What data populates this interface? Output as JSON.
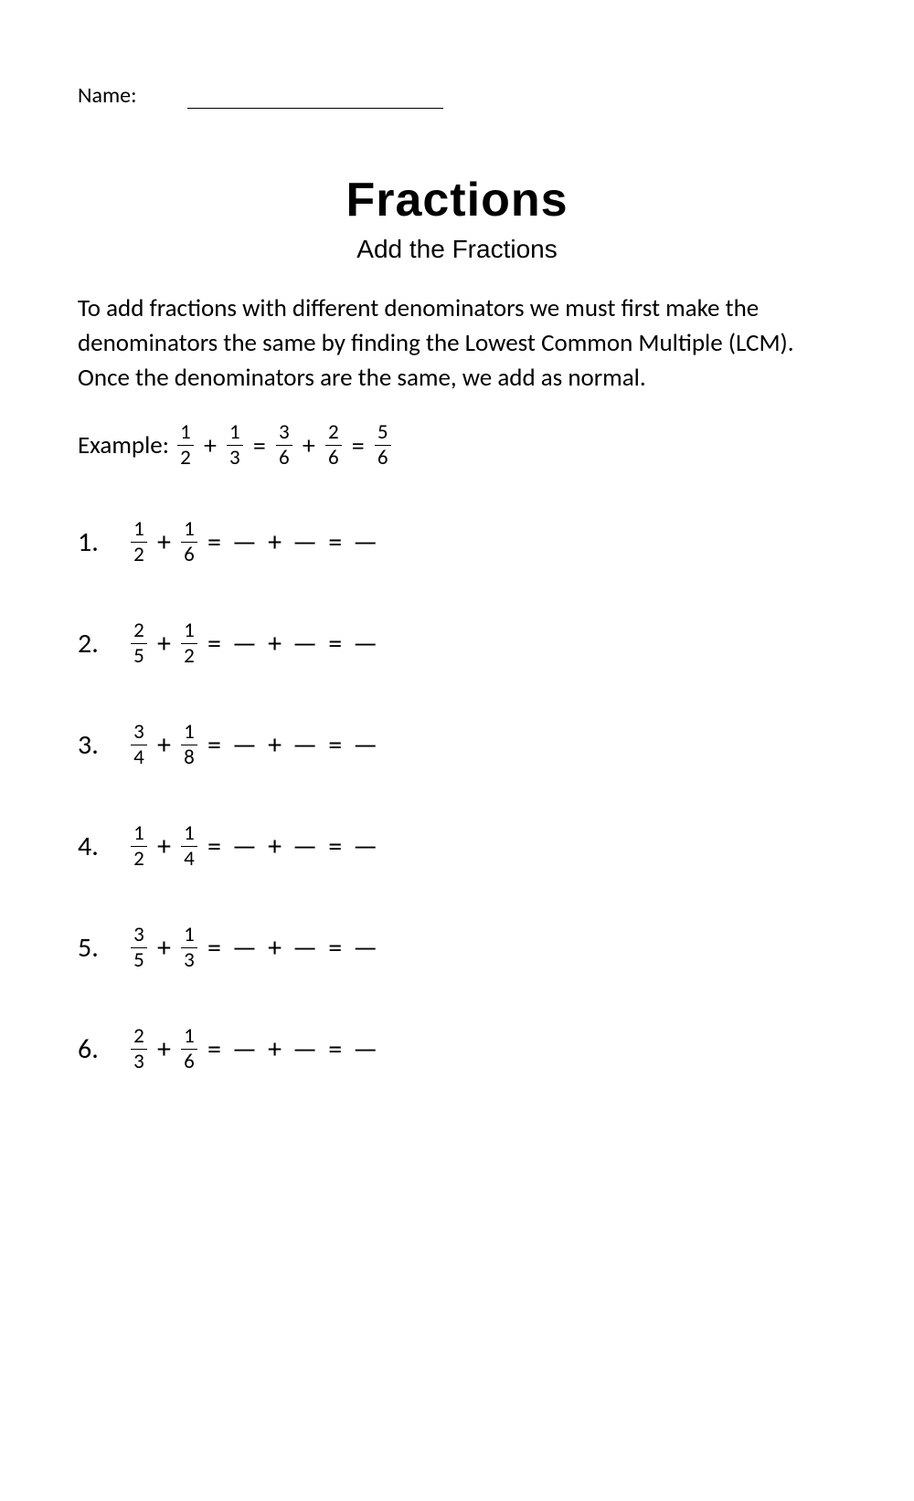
{
  "header": {
    "name_label": "Name:"
  },
  "title": "Fractions",
  "subtitle": "Add the Fractions",
  "instructions": "To add fractions with different denominators we must first make the denominators the same by finding the Lowest Common Multiple (LCM). Once the denominators are the same, we add as normal.",
  "example": {
    "label": "Example:",
    "f1": {
      "num": "1",
      "den": "2"
    },
    "f2": {
      "num": "1",
      "den": "3"
    },
    "f3": {
      "num": "3",
      "den": "6"
    },
    "f4": {
      "num": "2",
      "den": "6"
    },
    "f5": {
      "num": "5",
      "den": "6"
    }
  },
  "problems": [
    {
      "number": "1.",
      "f1": {
        "num": "1",
        "den": "2"
      },
      "f2": {
        "num": "1",
        "den": "6"
      }
    },
    {
      "number": "2.",
      "f1": {
        "num": "2",
        "den": "5"
      },
      "f2": {
        "num": "1",
        "den": "2"
      }
    },
    {
      "number": "3.",
      "f1": {
        "num": "3",
        "den": "4"
      },
      "f2": {
        "num": "1",
        "den": "8"
      }
    },
    {
      "number": "4.",
      "f1": {
        "num": "1",
        "den": "2"
      },
      "f2": {
        "num": "1",
        "den": "4"
      }
    },
    {
      "number": "5.",
      "f1": {
        "num": "3",
        "den": "5"
      },
      "f2": {
        "num": "1",
        "den": "3"
      }
    },
    {
      "number": "6.",
      "f1": {
        "num": "2",
        "den": "3"
      },
      "f2": {
        "num": "1",
        "den": "6"
      }
    }
  ],
  "symbols": {
    "plus": "+",
    "equals": "=",
    "dash": "—"
  },
  "colors": {
    "background": "#ffffff",
    "text": "#000000"
  },
  "typography": {
    "body_font": "Calibri, Arial, sans-serif",
    "title_font": "Arial, sans-serif",
    "title_fontsize": 52,
    "subtitle_fontsize": 28,
    "instructions_fontsize": 27,
    "problem_fontsize": 30,
    "fraction_fontsize": 23
  }
}
